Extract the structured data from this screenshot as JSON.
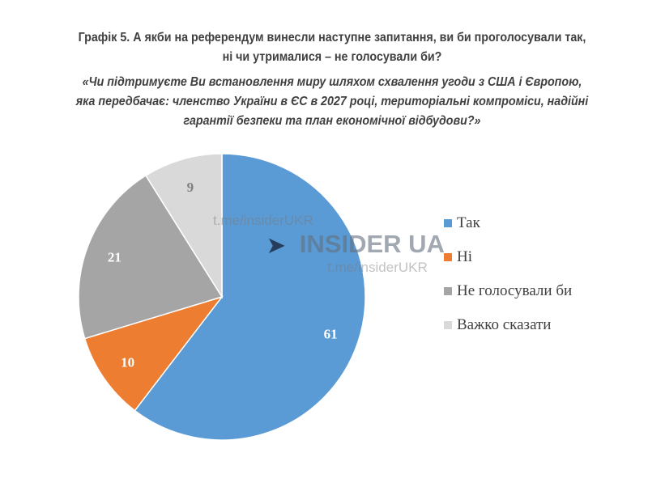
{
  "title_line1": "Графік 5. А якби на референдум винесли наступне запитання, ви би проголосували так,",
  "title_line2": "ні чи утрималися – не голосували би?",
  "question_line1": "«Чи підтримуєте Ви встановлення миру шляхом схвалення угоди з США і Європою,",
  "question_line2": "яка передбачає: членство України в ЄС в 2027 році, територіальні компроміси, надійні",
  "question_line3": "гарантії безпеки та план економічної відбудови?»",
  "watermark": {
    "url1": "t.me/insiderUKR",
    "brand": "INSIDER UA",
    "url2": "t.me/insiderUKR"
  },
  "chart_data": {
    "type": "pie",
    "start": "top",
    "direction": "clockwise",
    "categories": [
      "Так",
      "Ні",
      "Не голосували би",
      "Важко сказати"
    ],
    "values": [
      61,
      10,
      21,
      9
    ],
    "colors": [
      "#5b9bd5",
      "#ed7d31",
      "#a5a5a5",
      "#d9d9d9"
    ],
    "label_colors": [
      "#ffffff",
      "#ffffff",
      "#ffffff",
      "#7f7f7f"
    ],
    "legend_placement": "right"
  }
}
